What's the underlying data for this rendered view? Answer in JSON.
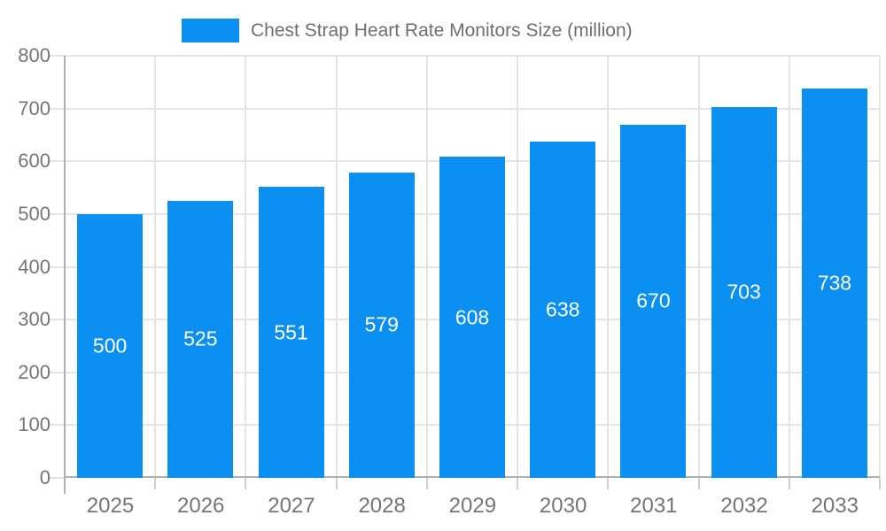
{
  "legend": {
    "label": "Chest Strap Heart Rate Monitors Size (million)"
  },
  "chart_data": {
    "type": "bar",
    "title": "Chest Strap Heart Rate Monitors Size (million)",
    "series_name": "Chest Strap Heart Rate Monitors Size (million)",
    "categories": [
      "2025",
      "2026",
      "2027",
      "2028",
      "2029",
      "2030",
      "2031",
      "2032",
      "2033"
    ],
    "values": [
      500,
      525,
      551,
      579,
      608,
      638,
      670,
      703,
      738
    ],
    "xlabel": "",
    "ylabel": "",
    "ylim": [
      0,
      800
    ],
    "ytick_interval": 100,
    "yticks": [
      0,
      100,
      200,
      300,
      400,
      500,
      600,
      700,
      800
    ],
    "grid": true,
    "legend_position": "top-center",
    "bar_label_position": "inside-center",
    "colors": {
      "bar": "#0b90f2",
      "bar_label": "#ffffff",
      "axis_text": "#757575",
      "legend_text": "#6f6f6f",
      "gridline": "#e4e4e4",
      "minor_tick": "#d0d0d0",
      "axis_line": "#b0b0b0",
      "background": "#ffffff"
    }
  }
}
